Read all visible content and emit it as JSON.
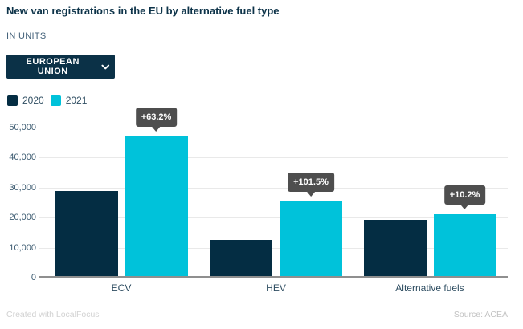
{
  "header": {
    "title": "New van registrations in the EU by alternative fuel type",
    "subtitle": "IN UNITS"
  },
  "filter": {
    "selected": "EUROPEAN UNION",
    "icon": "chevron-down-icon"
  },
  "chart_data": {
    "type": "bar",
    "title": "New van registrations in the EU by alternative fuel type",
    "unit_label": "IN UNITS",
    "categories": [
      "ECV",
      "HEV",
      "Alternative fuels"
    ],
    "series": [
      {
        "name": "2020",
        "color": "#042d43",
        "values": [
          28800,
          12600,
          19200
        ]
      },
      {
        "name": "2021",
        "color": "#00c2da",
        "values": [
          47000,
          25400,
          21200
        ]
      }
    ],
    "annotations": [
      {
        "category": "ECV",
        "series": "2021",
        "text": "+63.2%"
      },
      {
        "category": "HEV",
        "series": "2021",
        "text": "+101.5%"
      },
      {
        "category": "Alternative fuels",
        "series": "2021",
        "text": "+10.2%"
      }
    ],
    "ylim": [
      0,
      50000
    ],
    "yticks": [
      0,
      10000,
      20000,
      30000,
      40000,
      50000
    ],
    "ytick_labels": [
      "0",
      "10,000",
      "20,000",
      "30,000",
      "40,000",
      "50,000"
    ],
    "grid": "horizontal",
    "legend_position": "top-left"
  },
  "colors": {
    "navy": "#042d43",
    "cyan": "#00c2da",
    "title_text": "#0d3349",
    "axis_text": "#3b5a70",
    "category_text": "#2e4d61",
    "gridline": "#e9e9e9",
    "baseline": "#8f8f8f",
    "tooltip_bg": "#4e4e4e",
    "dropdown_bg": "#0b3147"
  },
  "footer": {
    "left": "Created with LocalFocus",
    "right": "Source: ACEA"
  }
}
